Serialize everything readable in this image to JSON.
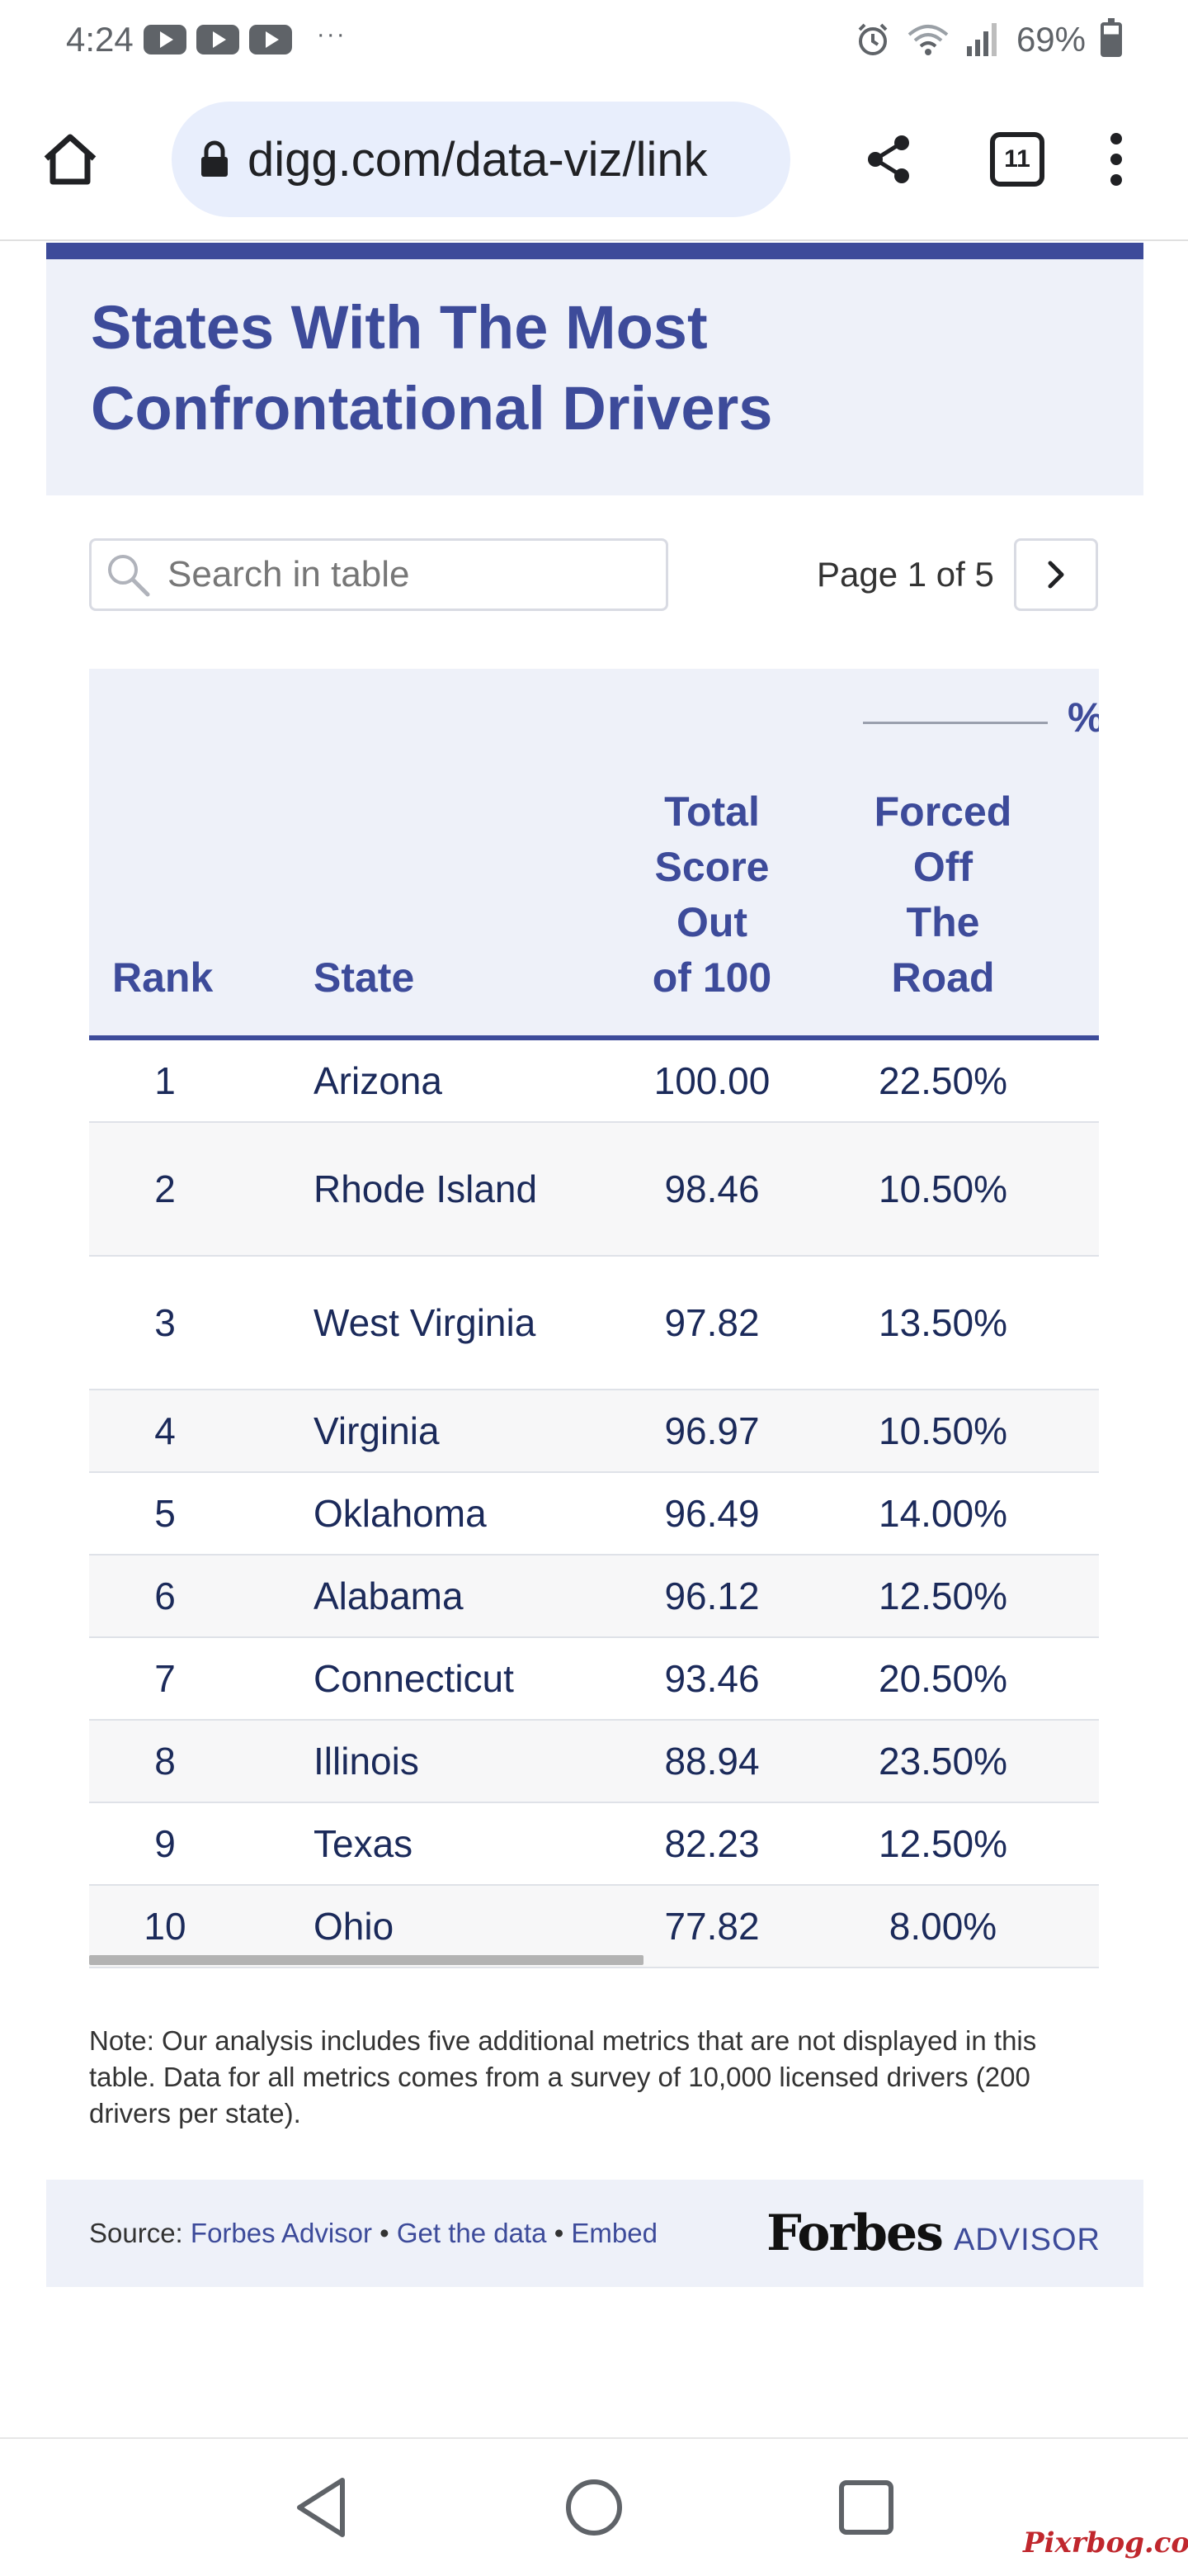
{
  "status_bar": {
    "time": "4:24",
    "notification_dots": "···",
    "battery": "69%"
  },
  "browser": {
    "url": "digg.com/data-viz/link",
    "tab_count": "11"
  },
  "card": {
    "title_line1": "States With The Most",
    "title_line2": "Confrontational Drivers",
    "accent_color": "#3d4b9a"
  },
  "controls": {
    "search_placeholder": "Search in table",
    "page_label": "Page 1 of 5"
  },
  "table": {
    "group_header": "%",
    "columns": {
      "rank": "Rank",
      "state": "State",
      "score_line1": "Total",
      "score_line2": "Score",
      "score_line3": "Out",
      "score_line4": "of 100",
      "forced_line1": "Forced",
      "forced_line2": "Off",
      "forced_line3": "The",
      "forced_line4": "Road"
    },
    "rows": [
      {
        "rank": "1",
        "state": "Arizona",
        "score": "100.00",
        "forced": "22.50%"
      },
      {
        "rank": "2",
        "state": "Rhode Island",
        "score": "98.46",
        "forced": "10.50%"
      },
      {
        "rank": "3",
        "state": "West Virginia",
        "score": "97.82",
        "forced": "13.50%"
      },
      {
        "rank": "4",
        "state": "Virginia",
        "score": "96.97",
        "forced": "10.50%"
      },
      {
        "rank": "5",
        "state": "Oklahoma",
        "score": "96.49",
        "forced": "14.00%"
      },
      {
        "rank": "6",
        "state": "Alabama",
        "score": "96.12",
        "forced": "12.50%"
      },
      {
        "rank": "7",
        "state": "Connecticut",
        "score": "93.46",
        "forced": "20.50%"
      },
      {
        "rank": "8",
        "state": "Illinois",
        "score": "88.94",
        "forced": "23.50%"
      },
      {
        "rank": "9",
        "state": "Texas",
        "score": "82.23",
        "forced": "12.50%"
      },
      {
        "rank": "10",
        "state": "Ohio",
        "score": "77.82",
        "forced": "8.00%"
      }
    ]
  },
  "note": "Note: Our analysis includes five additional metrics that are not displayed in this table. Data for all metrics comes from a survey of 10,000 licensed drivers (200 drivers per state).",
  "source": {
    "prefix": "Source: ",
    "source_link": "Forbes Advisor",
    "sep": " • ",
    "get_data": "Get the data",
    "embed": "Embed",
    "logo_word1": "Forbes",
    "logo_word2": "ADVISOR"
  },
  "watermark": "Pixrbog.com"
}
